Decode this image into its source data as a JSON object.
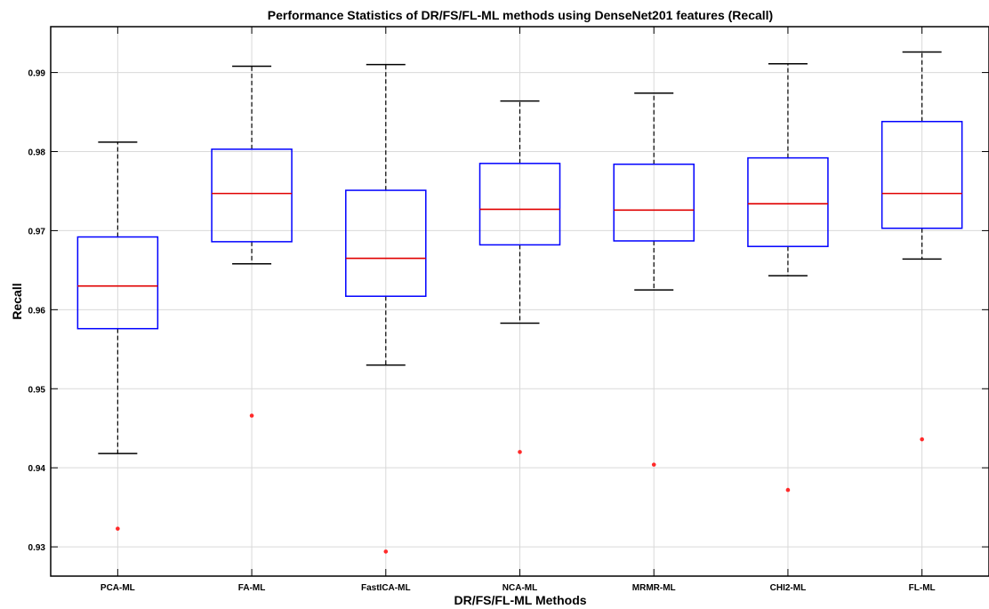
{
  "chart_data": {
    "type": "boxplot",
    "title": "Performance Statistics of DR/FS/FL-ML methods using DenseNet201 features (Recall)",
    "xlabel": "DR/FS/FL-ML Methods",
    "ylabel": "Recall",
    "ylim": [
      0.9263,
      0.9958
    ],
    "yticks": [
      0.93,
      0.94,
      0.95,
      0.96,
      0.97,
      0.98,
      0.99
    ],
    "grid": true,
    "categories": [
      "PCA-ML",
      "FA-ML",
      "FastICA-ML",
      "NCA-ML",
      "MRMR-ML",
      "CHI2-ML",
      "FL-ML"
    ],
    "boxes": [
      {
        "min": 0.9418,
        "q1": 0.9576,
        "median": 0.963,
        "q3": 0.9692,
        "max": 0.9812,
        "outliers": [
          0.9323
        ]
      },
      {
        "min": 0.9658,
        "q1": 0.9686,
        "median": 0.9747,
        "q3": 0.9803,
        "max": 0.9908,
        "outliers": [
          0.9466
        ]
      },
      {
        "min": 0.953,
        "q1": 0.9617,
        "median": 0.9665,
        "q3": 0.9751,
        "max": 0.991,
        "outliers": [
          0.9294
        ]
      },
      {
        "min": 0.9583,
        "q1": 0.9682,
        "median": 0.9727,
        "q3": 0.9785,
        "max": 0.9864,
        "outliers": [
          0.942
        ]
      },
      {
        "min": 0.9625,
        "q1": 0.9687,
        "median": 0.9726,
        "q3": 0.9784,
        "max": 0.9874,
        "outliers": [
          0.9404
        ]
      },
      {
        "min": 0.9643,
        "q1": 0.968,
        "median": 0.9734,
        "q3": 0.9792,
        "max": 0.9911,
        "outliers": [
          0.9372
        ]
      },
      {
        "min": 0.9664,
        "q1": 0.9703,
        "median": 0.9747,
        "q3": 0.9838,
        "max": 0.9926,
        "outliers": [
          0.9436
        ]
      }
    ],
    "colors": {
      "box": "#0000ff",
      "median": "#e00000",
      "whisker": "#000000",
      "outlier": "#ff2a2a"
    }
  }
}
